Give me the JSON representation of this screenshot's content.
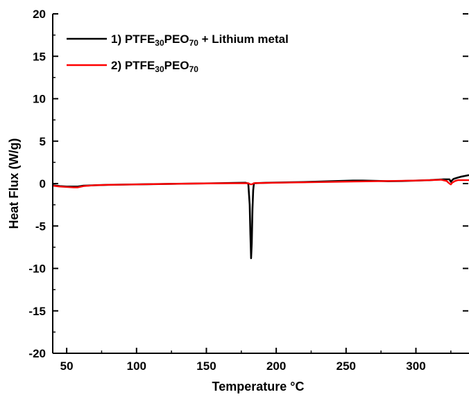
{
  "chart_data": {
    "type": "line",
    "title": "",
    "xlabel": "Temperature  °C",
    "ylabel": "Heat Flux (W/g)",
    "xlim": [
      40,
      338
    ],
    "ylim": [
      -20,
      20
    ],
    "x_ticks": [
      50,
      100,
      150,
      200,
      250,
      300
    ],
    "y_ticks": [
      -20,
      -15,
      -10,
      -5,
      0,
      5,
      10,
      15,
      20
    ],
    "grid": false,
    "legend_position": "top-left",
    "series": [
      {
        "name": "1) PTFE30PEO70 + Lithium metal",
        "legend_parts": [
          {
            "text": "1) PTFE",
            "sub": false
          },
          {
            "text": "30",
            "sub": true
          },
          {
            "text": "PEO",
            "sub": false
          },
          {
            "text": "70",
            "sub": true
          },
          {
            "text": " + Lithium metal",
            "sub": false
          }
        ],
        "color": "#000000",
        "x": [
          40,
          45,
          50,
          55,
          58,
          62,
          70,
          80,
          100,
          120,
          140,
          160,
          170,
          178,
          180,
          181,
          181.5,
          182,
          182.5,
          183,
          183.5,
          184,
          185,
          190,
          200,
          220,
          240,
          255,
          262,
          270,
          280,
          290,
          300,
          310,
          320,
          324,
          325,
          326,
          327,
          328,
          330,
          332,
          335,
          338
        ],
        "y": [
          -0.2,
          -0.3,
          -0.35,
          -0.35,
          -0.35,
          -0.25,
          -0.2,
          -0.15,
          -0.1,
          -0.05,
          0.0,
          0.05,
          0.08,
          0.1,
          0.0,
          -2.5,
          -6.0,
          -8.8,
          -7.0,
          -3.0,
          -0.8,
          0.0,
          0.05,
          0.08,
          0.12,
          0.18,
          0.28,
          0.35,
          0.35,
          0.32,
          0.28,
          0.3,
          0.35,
          0.4,
          0.5,
          0.5,
          0.2,
          0.4,
          0.55,
          0.6,
          0.7,
          0.8,
          0.9,
          1.0
        ]
      },
      {
        "name": "2) PTFE30PEO70",
        "legend_parts": [
          {
            "text": "2) PTFE",
            "sub": false
          },
          {
            "text": "30",
            "sub": true
          },
          {
            "text": "PEO",
            "sub": false
          },
          {
            "text": "70",
            "sub": true
          }
        ],
        "color": "#ff0000",
        "x": [
          40,
          45,
          50,
          55,
          58,
          62,
          70,
          80,
          100,
          120,
          140,
          160,
          180,
          181,
          182,
          183,
          184,
          200,
          220,
          240,
          260,
          280,
          300,
          310,
          318,
          322,
          324,
          325,
          326,
          328,
          330,
          335,
          338
        ],
        "y": [
          -0.25,
          -0.35,
          -0.4,
          -0.45,
          -0.45,
          -0.3,
          -0.2,
          -0.15,
          -0.1,
          -0.05,
          0.0,
          0.03,
          0.05,
          -0.05,
          -0.1,
          -0.05,
          0.05,
          0.1,
          0.15,
          0.2,
          0.25,
          0.3,
          0.35,
          0.4,
          0.45,
          0.3,
          0.0,
          -0.1,
          0.1,
          0.3,
          0.4,
          0.4,
          0.4
        ]
      }
    ]
  }
}
